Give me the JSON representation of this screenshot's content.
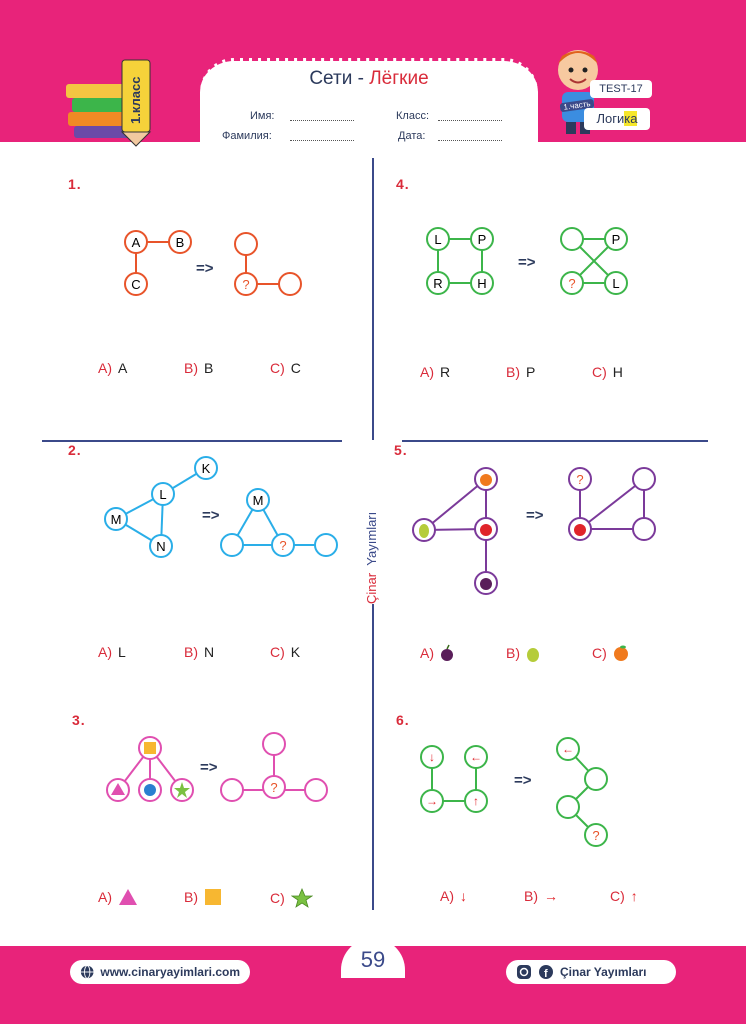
{
  "header": {
    "title_main": "Сети",
    "title_sep": "-",
    "title_accent": "Лёгкие",
    "name_label": "Имя:",
    "surname_label": "Фамилия:",
    "class_label": "Класс:",
    "date_label": "Дата:",
    "grade_badge": "1.класс",
    "test_badge": "TEST-17",
    "part_tag": "1.часть",
    "subject_prefix": "Логи",
    "subject_highlight": "ка"
  },
  "questions": [
    {
      "number": "1.",
      "node_labels": [
        "A",
        "B",
        "C",
        "?"
      ],
      "options": [
        {
          "letter": "A)",
          "text": "A"
        },
        {
          "letter": "B)",
          "text": "B"
        },
        {
          "letter": "C)",
          "text": "C"
        }
      ]
    },
    {
      "number": "2.",
      "node_labels": [
        "K",
        "L",
        "M",
        "N",
        "M",
        "?"
      ],
      "options": [
        {
          "letter": "A)",
          "text": "L"
        },
        {
          "letter": "B)",
          "text": "N"
        },
        {
          "letter": "C)",
          "text": "K"
        }
      ]
    },
    {
      "number": "3.",
      "node_labels": [
        "?"
      ],
      "options": [
        {
          "letter": "A)",
          "icon": "triangle-icon"
        },
        {
          "letter": "B)",
          "icon": "square-icon"
        },
        {
          "letter": "C)",
          "icon": "star-icon"
        }
      ]
    },
    {
      "number": "4.",
      "node_labels": [
        "L",
        "P",
        "R",
        "H",
        "P",
        "?",
        "L"
      ],
      "options": [
        {
          "letter": "A)",
          "text": "R"
        },
        {
          "letter": "B)",
          "text": "P"
        },
        {
          "letter": "C)",
          "text": "H"
        }
      ]
    },
    {
      "number": "5.",
      "node_labels": [
        "?"
      ],
      "options": [
        {
          "letter": "A)",
          "icon": "plum-icon"
        },
        {
          "letter": "B)",
          "icon": "pear-icon"
        },
        {
          "letter": "C)",
          "icon": "orange-icon"
        }
      ]
    },
    {
      "number": "6.",
      "node_labels": [
        "?"
      ],
      "options": [
        {
          "letter": "A)",
          "icon": "arrow-down-icon"
        },
        {
          "letter": "B)",
          "icon": "arrow-right-icon"
        },
        {
          "letter": "C)",
          "icon": "arrow-up-icon"
        }
      ]
    }
  ],
  "arrow_symbol": "=>",
  "side_text": {
    "part1": "Çinar",
    "part2": "Yayımları"
  },
  "page_number": "59",
  "footer": {
    "website": "www.cinaryayimlari.com",
    "publisher": "Çinar Yayımları"
  },
  "colors": {
    "brand_pink": "#e8237a",
    "q1": "#e8542a",
    "q2": "#2aaee8",
    "q3": "#e04fb0",
    "q4": "#3cb54a",
    "q5": "#7b3a9a",
    "q6": "#3cb54a",
    "accent_red": "#d92b3a",
    "navy": "#3b4a8a"
  }
}
